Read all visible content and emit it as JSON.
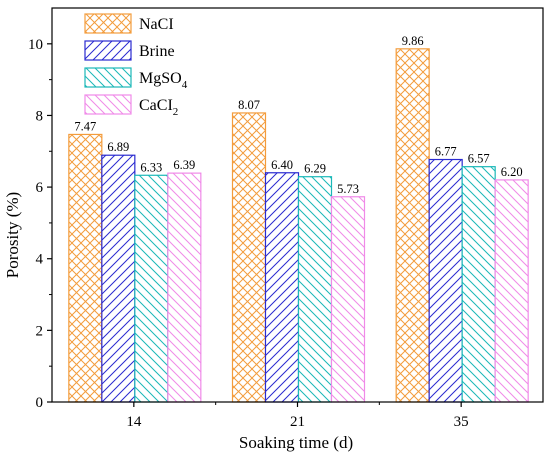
{
  "chart_data": {
    "type": "bar",
    "title": "",
    "xlabel": "Soaking time (d)",
    "ylabel": "Porosity (%)",
    "categories": [
      "14",
      "21",
      "35"
    ],
    "ylim": [
      0,
      11
    ],
    "yticks": [
      "0",
      "2",
      "4",
      "6",
      "8",
      "10"
    ],
    "legend_position": "top-left",
    "series": [
      {
        "name": "NaCI",
        "values": [
          7.47,
          8.07,
          9.86
        ],
        "labels": [
          "7.47",
          "8.07",
          "9.86"
        ],
        "color": "#f39c3c",
        "pattern": "crosshatch"
      },
      {
        "name": "Brine",
        "values": [
          6.89,
          6.4,
          6.77
        ],
        "labels": [
          "6.89",
          "6.40",
          "6.77"
        ],
        "color": "#2a2ad0",
        "pattern": "diagonal-forward"
      },
      {
        "name": "MgSO",
        "name_sub": "4",
        "values": [
          6.33,
          6.29,
          6.57
        ],
        "labels": [
          "6.33",
          "6.29",
          "6.57"
        ],
        "color": "#1bb8b8",
        "pattern": "diagonal-back"
      },
      {
        "name": "CaCI",
        "name_sub": "2",
        "values": [
          6.39,
          5.73,
          6.2
        ],
        "labels": [
          "6.39",
          "5.73",
          "6.20"
        ],
        "color": "#f08ae8",
        "pattern": "diagonal-back"
      }
    ]
  }
}
